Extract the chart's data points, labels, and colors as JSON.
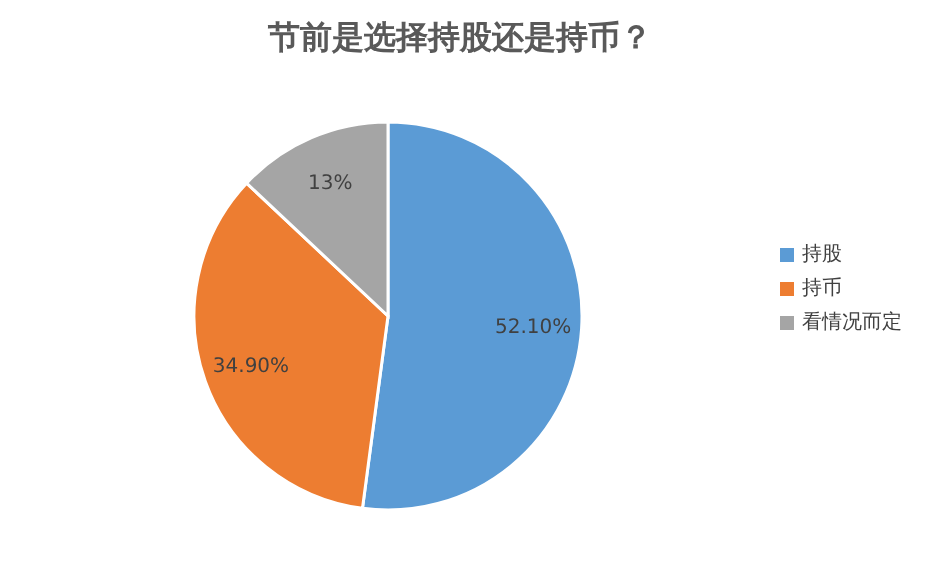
{
  "chart_data": {
    "type": "pie",
    "title": "节前是选择持股还是持币？",
    "categories": [
      "持股",
      "持币",
      "看情况而定"
    ],
    "values": [
      52.1,
      34.9,
      13
    ],
    "value_labels": [
      "52.10%",
      "34.90%",
      "13%"
    ],
    "colors": [
      "#5b9bd5",
      "#ed7d31",
      "#a5a5a5"
    ],
    "legend": "right"
  }
}
